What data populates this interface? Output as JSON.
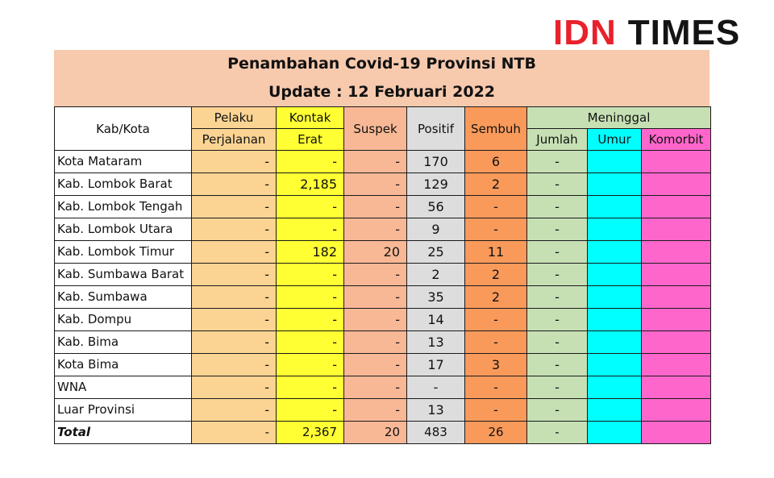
{
  "logo": {
    "part1": "IDN",
    "part2": "TIMES"
  },
  "title": {
    "line1": "Penambahan Covid-19 Provinsi NTB",
    "line2": "Update : 12 Februari 2022"
  },
  "headers": {
    "kabkota": "Kab/Kota",
    "pelaku_1": "Pelaku",
    "pelaku_2": "Perjalanan",
    "kontak_1": "Kontak",
    "kontak_2": "Erat",
    "suspek": "Suspek",
    "positif": "Positif",
    "sembuh": "Sembuh",
    "meninggal": "Meninggal",
    "jumlah": "Jumlah",
    "umur": "Umur",
    "komorbit": "Komorbit"
  },
  "colors": {
    "banner": "#f7c9ad",
    "pelaku": "#fbd493",
    "kontak": "#ffff33",
    "suspek": "#f8b896",
    "positif": "#dddddd",
    "sembuh": "#f99a5b",
    "jumlah": "#c6e0b4",
    "umur": "#00ffff",
    "komorbit": "#ff66cc"
  },
  "rows": [
    {
      "name": "Kota Mataram",
      "pelaku": "-",
      "kontak": "-",
      "suspek": "-",
      "positif": "170",
      "sembuh": "6",
      "jumlah": "-"
    },
    {
      "name": "Kab. Lombok Barat",
      "pelaku": "-",
      "kontak": "2,185",
      "suspek": "-",
      "positif": "129",
      "sembuh": "2",
      "jumlah": "-"
    },
    {
      "name": "Kab. Lombok Tengah",
      "pelaku": "-",
      "kontak": "-",
      "suspek": "-",
      "positif": "56",
      "sembuh": "-",
      "jumlah": "-"
    },
    {
      "name": "Kab. Lombok  Utara",
      "pelaku": "-",
      "kontak": "-",
      "suspek": "-",
      "positif": "9",
      "sembuh": "-",
      "jumlah": "-"
    },
    {
      "name": "Kab. Lombok Timur",
      "pelaku": "-",
      "kontak": "182",
      "suspek": "20",
      "positif": "25",
      "sembuh": "11",
      "jumlah": "-"
    },
    {
      "name": "Kab. Sumbawa Barat",
      "pelaku": "-",
      "kontak": "-",
      "suspek": "-",
      "positif": "2",
      "sembuh": "2",
      "jumlah": "-"
    },
    {
      "name": "Kab. Sumbawa",
      "pelaku": "-",
      "kontak": "-",
      "suspek": "-",
      "positif": "35",
      "sembuh": "2",
      "jumlah": "-"
    },
    {
      "name": "Kab. Dompu",
      "pelaku": "-",
      "kontak": "-",
      "suspek": "-",
      "positif": "14",
      "sembuh": "-",
      "jumlah": "-"
    },
    {
      "name": "Kab. Bima",
      "pelaku": "-",
      "kontak": "-",
      "suspek": "-",
      "positif": "13",
      "sembuh": "-",
      "jumlah": "-"
    },
    {
      "name": "Kota Bima",
      "pelaku": "-",
      "kontak": "-",
      "suspek": "-",
      "positif": "17",
      "sembuh": "3",
      "jumlah": "-"
    },
    {
      "name": "WNA",
      "pelaku": "-",
      "kontak": "-",
      "suspek": "-",
      "positif": "-",
      "sembuh": "-",
      "jumlah": "-"
    },
    {
      "name": "Luar Provinsi",
      "pelaku": "-",
      "kontak": "-",
      "suspek": "-",
      "positif": "13",
      "sembuh": "-",
      "jumlah": "-"
    }
  ],
  "total": {
    "name": "Total",
    "pelaku": "-",
    "kontak": "2,367",
    "suspek": "20",
    "positif": "483",
    "sembuh": "26",
    "jumlah": "-"
  }
}
